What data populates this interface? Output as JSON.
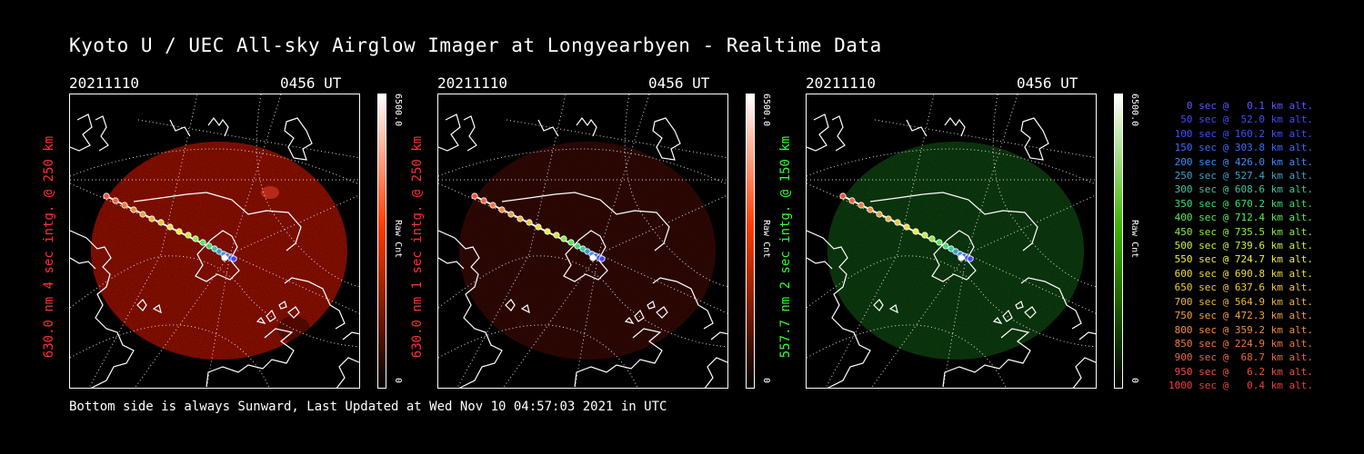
{
  "title": "Kyoto U / UEC All-sky Airglow Imager at Longyearbyen - Realtime Data",
  "footer": "Bottom side is always Sunward, Last Updated at Wed Nov 10 04:57:03 2021 in UTC",
  "panels": [
    {
      "date": "20211110",
      "time": "0456 UT",
      "ylabel": "630.0 nm 4 sec intg. @ 250 km",
      "cbar_max": "6500.0",
      "cbar_min": "0",
      "cbar_label": "Raw Cnt",
      "label_color": "#ff3030",
      "cbar_color": "#ff3a00",
      "emission_color": "#b51400",
      "emission_opacity": 0.92
    },
    {
      "date": "20211110",
      "time": "0456 UT",
      "ylabel": "630.0 nm 1 sec intg. @ 250 km",
      "cbar_max": "6500.0",
      "cbar_min": "0",
      "cbar_label": "Raw Cnt",
      "label_color": "#ff3030",
      "cbar_color": "#ff3a00",
      "emission_color": "#3c0a04",
      "emission_opacity": 0.95
    },
    {
      "date": "20211110",
      "time": "0456 UT",
      "ylabel": "557.7 nm 2 sec intg. @ 150 km",
      "cbar_max": "6500.0",
      "cbar_min": "0",
      "cbar_label": "Raw Cnt",
      "label_color": "#30ff30",
      "cbar_color": "#3cb400",
      "emission_color": "#0f4a12",
      "emission_opacity": 0.95
    }
  ],
  "legend": [
    {
      "text": "0 sec @   0.1 km alt.",
      "color": "#5a5aff"
    },
    {
      "text": "50 sec @  52.0 km alt.",
      "color": "#4646ff"
    },
    {
      "text": "100 sec @ 160.2 km alt.",
      "color": "#3c50ff"
    },
    {
      "text": "150 sec @ 303.8 km alt.",
      "color": "#3c6cff"
    },
    {
      "text": "200 sec @ 426.0 km alt.",
      "color": "#3c8cff"
    },
    {
      "text": "250 sec @ 527.4 km alt.",
      "color": "#3ca0c8"
    },
    {
      "text": "300 sec @ 608.6 km alt.",
      "color": "#3cc8a0"
    },
    {
      "text": "350 sec @ 670.2 km alt.",
      "color": "#3cdc6e"
    },
    {
      "text": "400 sec @ 712.4 km alt.",
      "color": "#50f050"
    },
    {
      "text": "450 sec @ 735.5 km alt.",
      "color": "#8cf03c"
    },
    {
      "text": "500 sec @ 739.6 km alt.",
      "color": "#c8f03c"
    },
    {
      "text": "550 sec @ 724.7 km alt.",
      "color": "#f0f03c"
    },
    {
      "text": "600 sec @ 690.8 km alt.",
      "color": "#f0dc3c"
    },
    {
      "text": "650 sec @ 637.6 km alt.",
      "color": "#f0c83c"
    },
    {
      "text": "700 sec @ 564.9 km alt.",
      "color": "#f0b43c"
    },
    {
      "text": "750 sec @ 472.3 km alt.",
      "color": "#f0a03c"
    },
    {
      "text": "800 sec @ 359.2 km alt.",
      "color": "#f08c3c"
    },
    {
      "text": "850 sec @ 224.9 km alt.",
      "color": "#f0783c"
    },
    {
      "text": "900 sec @  68.7 km alt.",
      "color": "#f0643c"
    },
    {
      "text": "950 sec @   6.2 km alt.",
      "color": "#f0503c"
    },
    {
      "text": "1000 sec @   0.4 km alt.",
      "color": "#f03c3c"
    }
  ]
}
